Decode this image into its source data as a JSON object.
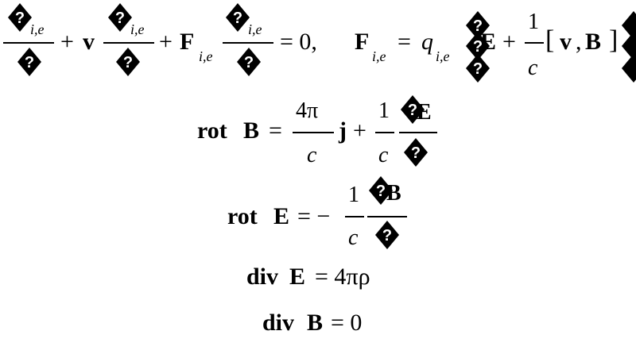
{
  "colors": {
    "ink": "#000000",
    "background": "#ffffff"
  },
  "missing_glyph": "?",
  "eq1": {
    "op_plus_a": "+",
    "v_bold": "v",
    "op_plus_b": "+",
    "F_bold": "F",
    "sub_ie_a": "i,e",
    "sub_ie_b": "i,e",
    "sub_ie_c": "i,e",
    "sub_ie_d": "i,e",
    "sub_ie_e": "i,e",
    "eq_zero": "= 0,",
    "F2_bold": "F",
    "equals": "=",
    "q": "q",
    "E_bold": "E",
    "op_plus_c": "+",
    "one": "1",
    "c": "c",
    "lbracket": "[",
    "v2_bold": "v",
    "comma": ",",
    "B_bold": "B",
    "rbracket": "]"
  },
  "eq2": {
    "rot": "rot",
    "B": "B",
    "equals": "=",
    "num": "4π",
    "den": "c",
    "j": "j",
    "plus": "+",
    "one": "1",
    "den2": "c",
    "E": "E"
  },
  "eq3": {
    "rot": "rot",
    "E": "E",
    "equals": "= −",
    "one": "1",
    "den": "c",
    "B": "B"
  },
  "eq4": {
    "div": "div",
    "E": "E",
    "rhs": "= 4πρ"
  },
  "eq5": {
    "div": "div",
    "B": "B",
    "rhs": "= 0"
  }
}
